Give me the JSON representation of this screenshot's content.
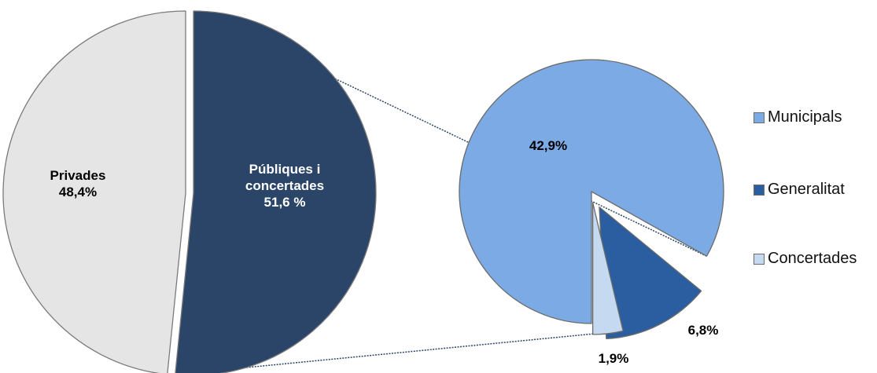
{
  "chart_data": [
    {
      "type": "pie",
      "slices": [
        {
          "name": "Privades",
          "value": 48.4,
          "color": "#e5e5e5",
          "label_lines": [
            "Privades",
            "48,4%"
          ],
          "label_color": "#000000"
        },
        {
          "name": "Públiques i concertades",
          "value": 51.6,
          "color": "#2b4568",
          "label_lines": [
            "Públiques i",
            "concertades",
            "51,6 %"
          ],
          "label_color": "#ffffff"
        }
      ]
    },
    {
      "type": "pie",
      "slices": [
        {
          "name": "Municipals",
          "value": 42.9,
          "color": "#7caae4",
          "label": "42,9%"
        },
        {
          "name": "Generalitat",
          "value": 6.8,
          "color": "#2a5ea0",
          "label": "6,8%"
        },
        {
          "name": "Concertades",
          "value": 1.9,
          "color": "#c5d9f1",
          "label": "1,9%"
        }
      ],
      "legend": {
        "position": "right",
        "items": [
          {
            "label": "Municipals",
            "color": "#7caae4"
          },
          {
            "label": "Generalitat",
            "color": "#2a5ea0"
          },
          {
            "label": "Concertades",
            "color": "#c5d9f1"
          }
        ]
      }
    }
  ]
}
